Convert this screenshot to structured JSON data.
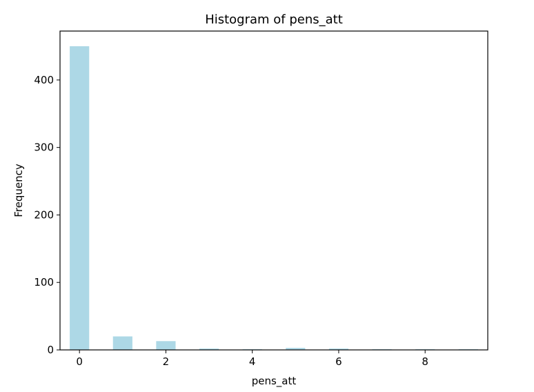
{
  "chart_data": {
    "type": "bar",
    "title": "Histogram of pens_att",
    "xlabel": "pens_att",
    "ylabel": "Frequency",
    "bar_color": "#add8e6",
    "xlim": [
      -0.45,
      9.45
    ],
    "ylim": [
      0,
      472.5
    ],
    "xticks": [
      0,
      2,
      4,
      6,
      8
    ],
    "yticks": [
      0,
      100,
      200,
      300,
      400
    ],
    "bin_width": 0.45,
    "bins": [
      {
        "x": 0,
        "count": 450
      },
      {
        "x": 1,
        "count": 20
      },
      {
        "x": 2,
        "count": 13
      },
      {
        "x": 3,
        "count": 2
      },
      {
        "x": 4,
        "count": 1
      },
      {
        "x": 5,
        "count": 3
      },
      {
        "x": 6,
        "count": 2
      },
      {
        "x": 7,
        "count": 1
      },
      {
        "x": 8,
        "count": 1
      },
      {
        "x": 9,
        "count": 1
      }
    ],
    "grid": false,
    "legend": "none"
  }
}
